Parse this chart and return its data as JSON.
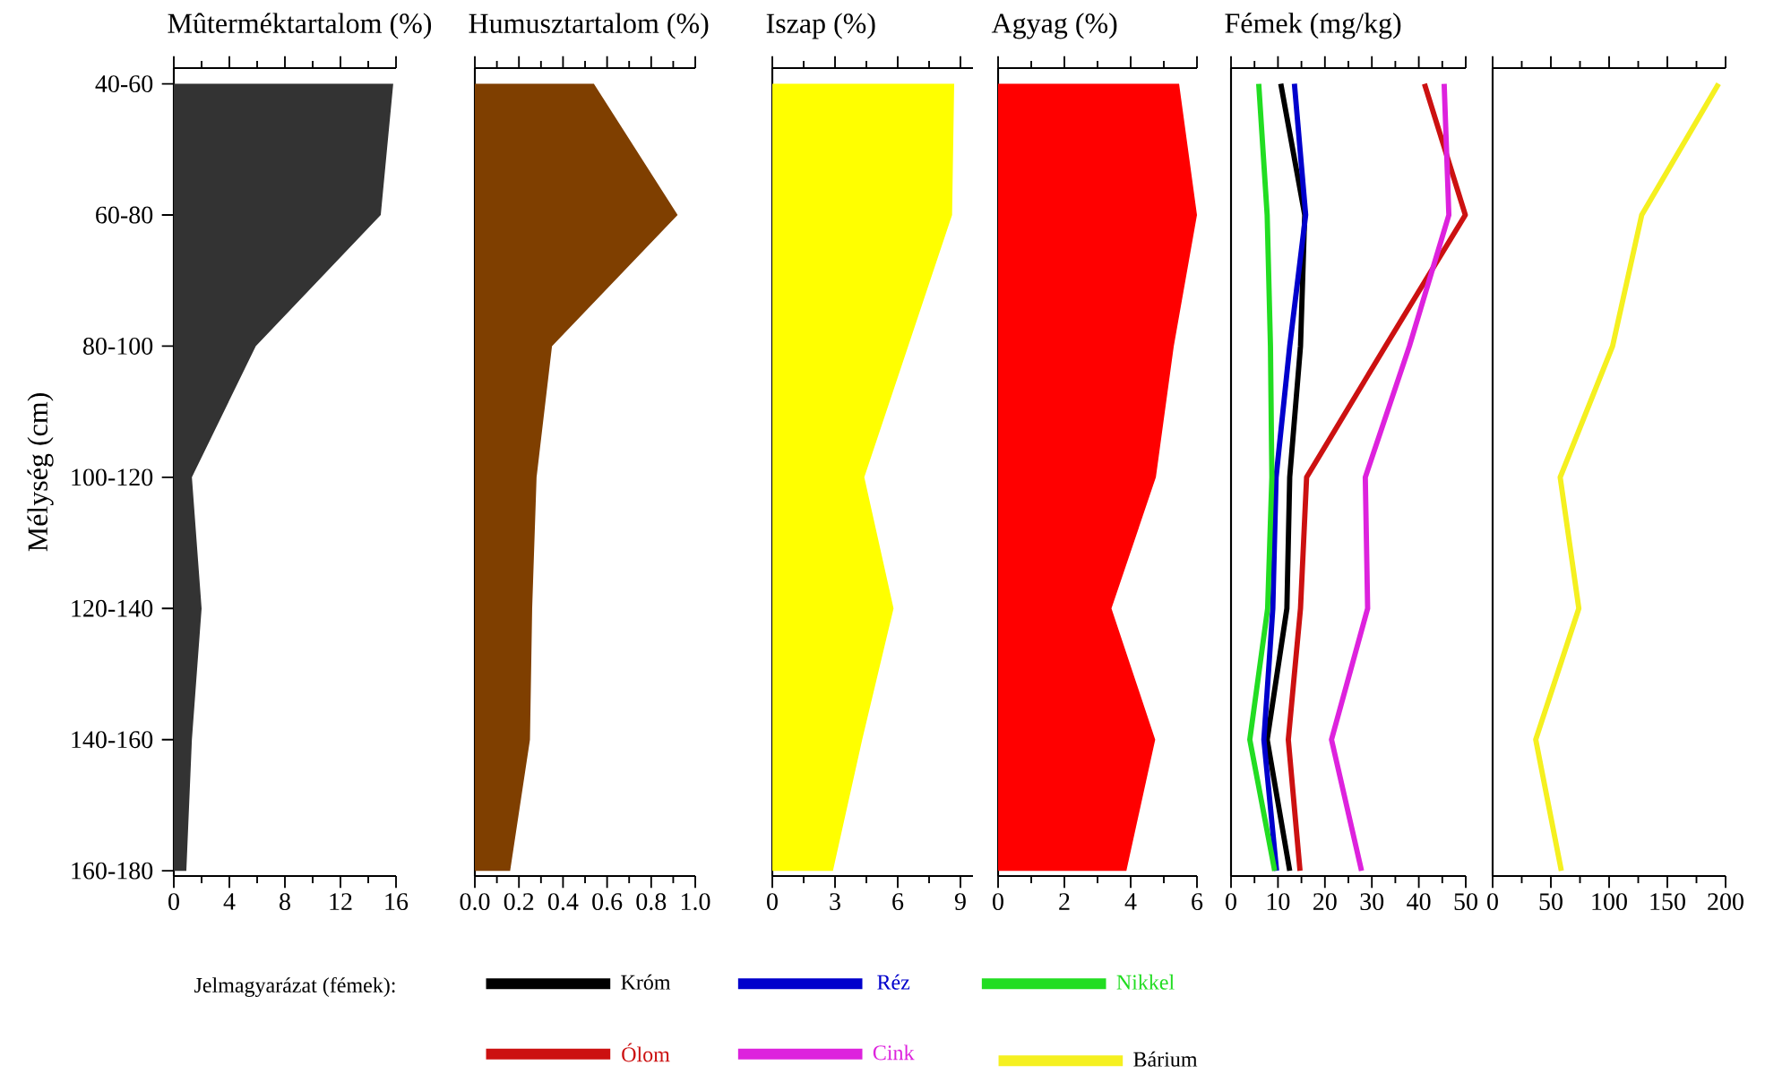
{
  "chart_data": [
    {
      "type": "area",
      "orientation": "horizontal",
      "title": "Mûterméktartalom (%)",
      "ylabel": "Mélység (cm)",
      "categories": [
        "40-60",
        "60-80",
        "80-100",
        "100-120",
        "120-140",
        "140-160",
        "160-180"
      ],
      "values": [
        15.8,
        14.9,
        5.9,
        1.3,
        2.0,
        1.3,
        0.9
      ],
      "color": "#333333",
      "xlim": [
        0,
        16
      ],
      "xticks": [
        0,
        4,
        8,
        12,
        16
      ]
    },
    {
      "type": "area",
      "orientation": "horizontal",
      "title": "Humusztartalom (%)",
      "tick_labels": "x",
      "categories": [
        null,
        null,
        null,
        null,
        null,
        null,
        null
      ],
      "values": [
        0.54,
        0.92,
        0.35,
        0.28,
        0.26,
        0.25,
        0.16
      ],
      "color": "#7f3f00",
      "xlim": [
        0,
        1
      ],
      "xticks": [
        {
          "value": 0,
          "label": "0.0"
        },
        {
          "value": 0.2,
          "label": "0.2"
        },
        {
          "value": 0.4,
          "label": "0.4"
        },
        {
          "value": 0.6,
          "label": "0.6"
        },
        {
          "value": 0.8,
          "label": "0.8"
        },
        {
          "value": 1,
          "label": "1.0"
        }
      ]
    },
    {
      "type": "area",
      "orientation": "horizontal",
      "title": "Iszap (%)",
      "tick_labels": "x",
      "categories": [
        null,
        null,
        null,
        null,
        null,
        null,
        null
      ],
      "values": [
        8.7,
        8.6,
        6.5,
        4.4,
        5.8,
        4.3,
        2.9
      ],
      "color": "#ffff00",
      "xlim": [
        0,
        9.6
      ],
      "xticks": [
        0,
        3,
        6,
        9
      ]
    },
    {
      "type": "area",
      "orientation": "horizontal",
      "title": "Agyag (%)",
      "tick_labels": "x",
      "categories": [
        null,
        null,
        null,
        null,
        null,
        null,
        null
      ],
      "values": [
        5.46,
        6.0,
        5.3,
        4.76,
        3.42,
        4.74,
        3.87
      ],
      "color": "#ff0000",
      "xlim": [
        0,
        6
      ],
      "xticks": [
        0,
        2,
        4,
        6
      ]
    },
    {
      "type": "line",
      "orientation": "horizontal",
      "title": "Fémek (mg/kg)",
      "tick_labels": "x",
      "marker": "none",
      "legend": "bottom",
      "legend_title": "Jelmagyarázat (fémek):",
      "categories": [
        null,
        null,
        null,
        null,
        null,
        null,
        null
      ],
      "series": [
        {
          "name": "Króm",
          "color": "#000000",
          "values": [
            10.6,
            15.7,
            14.8,
            12.5,
            11.9,
            7.7,
            12.5
          ]
        },
        {
          "name": "Réz",
          "color": "#0000cc",
          "values": [
            13.5,
            15.9,
            12.5,
            9.6,
            8.9,
            7.0,
            9.7
          ]
        },
        {
          "name": "Nikkel",
          "color": "#22dd22",
          "values": [
            5.9,
            7.7,
            8.4,
            8.7,
            7.8,
            4.0,
            9.3
          ]
        },
        {
          "name": "Ólom",
          "color": "#cc1111",
          "values": [
            41.2,
            49.9,
            32.9,
            16.1,
            14.8,
            12.2,
            14.7
          ]
        },
        {
          "name": "Cink",
          "color": "#dd22dd",
          "values": [
            45.4,
            46.4,
            38.0,
            28.6,
            29.1,
            21.4,
            27.8
          ]
        }
      ],
      "xlim": [
        0,
        50
      ],
      "xticks": [
        0,
        10,
        20,
        30,
        40,
        50
      ]
    },
    {
      "type": "line",
      "orientation": "horizontal",
      "tick_labels": "x",
      "marker": "none",
      "legend": "bottom",
      "categories": [
        null,
        null,
        null,
        null,
        null,
        null,
        null
      ],
      "series": [
        {
          "name": "Bárium",
          "color": "#f5f020",
          "values": [
            194,
            128,
            103,
            58,
            74,
            37,
            59
          ]
        }
      ],
      "xlim": [
        0,
        200
      ],
      "xticks": [
        0,
        50,
        100,
        150,
        200
      ]
    }
  ]
}
